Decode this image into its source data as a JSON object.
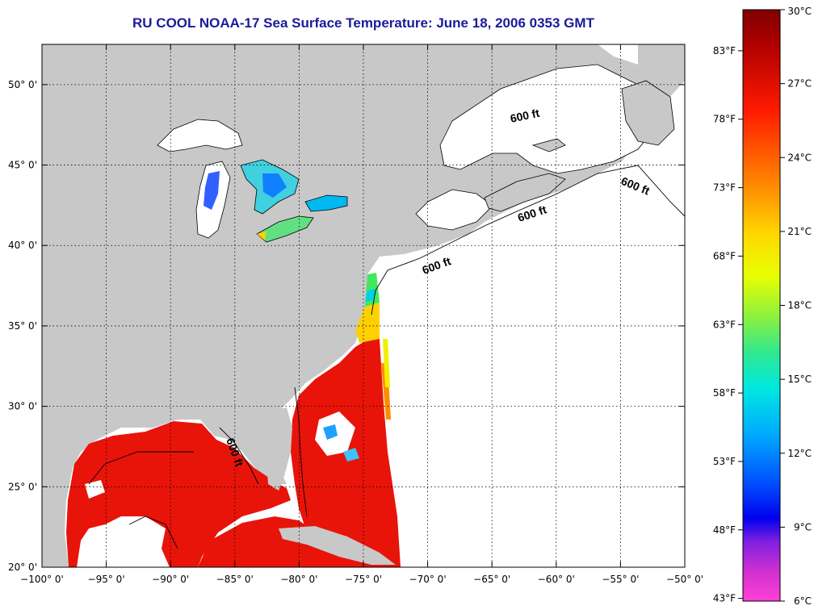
{
  "title": "RU COOL  NOAA-17  Sea Surface Temperature:  June 18, 2006 0353 GMT",
  "map": {
    "lon_min": -100,
    "lon_max": -50,
    "lat_min": 20,
    "lat_max": 52.5,
    "lon_ticks": [
      {
        "value": -100,
        "label": "−100° 0'"
      },
      {
        "value": -95,
        "label": "−95° 0'"
      },
      {
        "value": -90,
        "label": "−90° 0'"
      },
      {
        "value": -85,
        "label": "−85° 0'"
      },
      {
        "value": -80,
        "label": "−80° 0'"
      },
      {
        "value": -75,
        "label": "−75° 0'"
      },
      {
        "value": -70,
        "label": "−70° 0'"
      },
      {
        "value": -65,
        "label": "−65° 0'"
      },
      {
        "value": -60,
        "label": "−60° 0'"
      },
      {
        "value": -55,
        "label": "−55° 0'"
      },
      {
        "value": -50,
        "label": "−50° 0'"
      }
    ],
    "lat_ticks": [
      {
        "value": 20,
        "label": "20° 0'"
      },
      {
        "value": 25,
        "label": "25° 0'"
      },
      {
        "value": 30,
        "label": "30° 0'"
      },
      {
        "value": 35,
        "label": "35° 0'"
      },
      {
        "value": 40,
        "label": "40° 0'"
      },
      {
        "value": 45,
        "label": "45° 0'"
      },
      {
        "value": 50,
        "label": "50° 0'"
      }
    ],
    "contour_label": "600 ft",
    "colors": {
      "land": "#c8c8c8",
      "ocean": "#ffffff",
      "sst_warm": "#e8140a",
      "grid": "#000000"
    }
  },
  "colorbar": {
    "min_c": 6,
    "max_c": 30,
    "celsius_labels": [
      "30°C",
      "27°C",
      "24°C",
      "21°C",
      "18°C",
      "15°C",
      "12°C",
      "9°C",
      "6°C"
    ],
    "fahrenheit_labels": [
      "83°F",
      "78°F",
      "73°F",
      "68°F",
      "63°F",
      "58°F",
      "53°F",
      "48°F",
      "43°F"
    ]
  }
}
